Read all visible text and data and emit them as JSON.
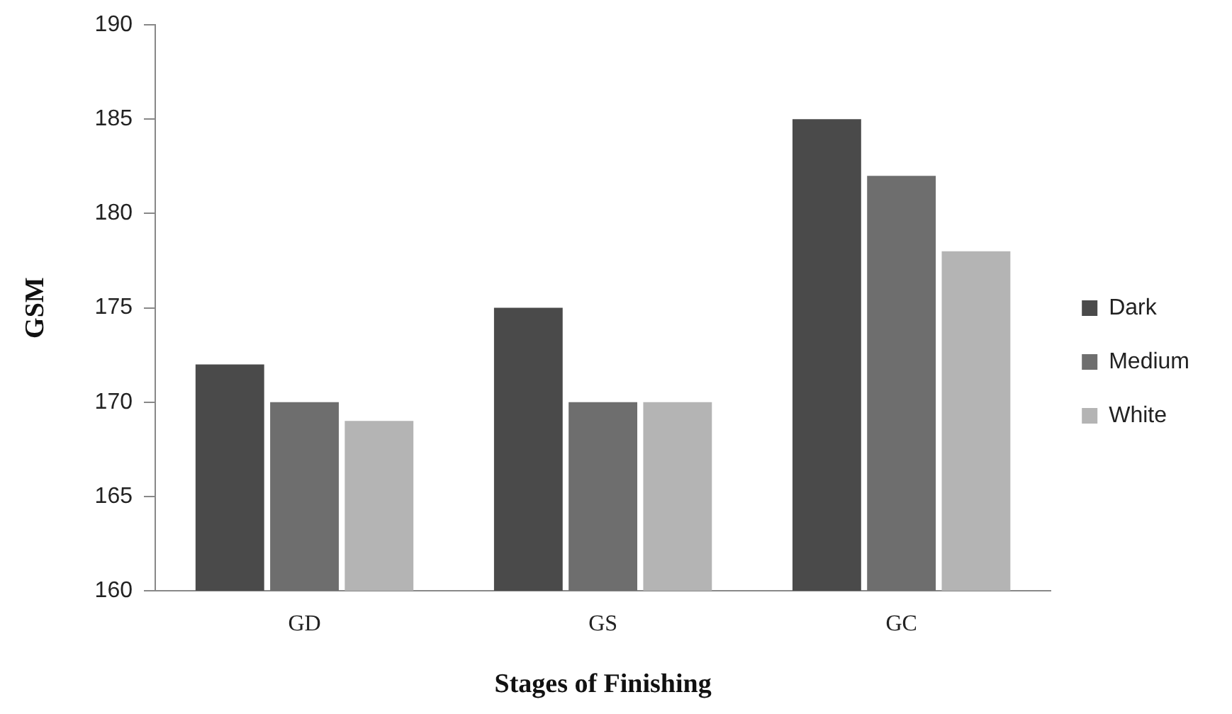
{
  "chart_data": {
    "type": "bar",
    "xlabel": "Stages of Finishing",
    "ylabel": "GSM",
    "categories": [
      "GD",
      "GS",
      "GC"
    ],
    "series": [
      {
        "name": "Dark",
        "color": "#4a4a4a",
        "values": [
          172,
          175,
          185
        ]
      },
      {
        "name": "Medium",
        "color": "#6e6e6e",
        "values": [
          170,
          170,
          182
        ]
      },
      {
        "name": "White",
        "color": "#b4b4b4",
        "values": [
          169,
          170,
          178
        ]
      }
    ],
    "ylim": [
      160,
      190
    ],
    "yticks": [
      160,
      165,
      170,
      175,
      180,
      185,
      190
    ],
    "grid": false,
    "legend": "right"
  }
}
